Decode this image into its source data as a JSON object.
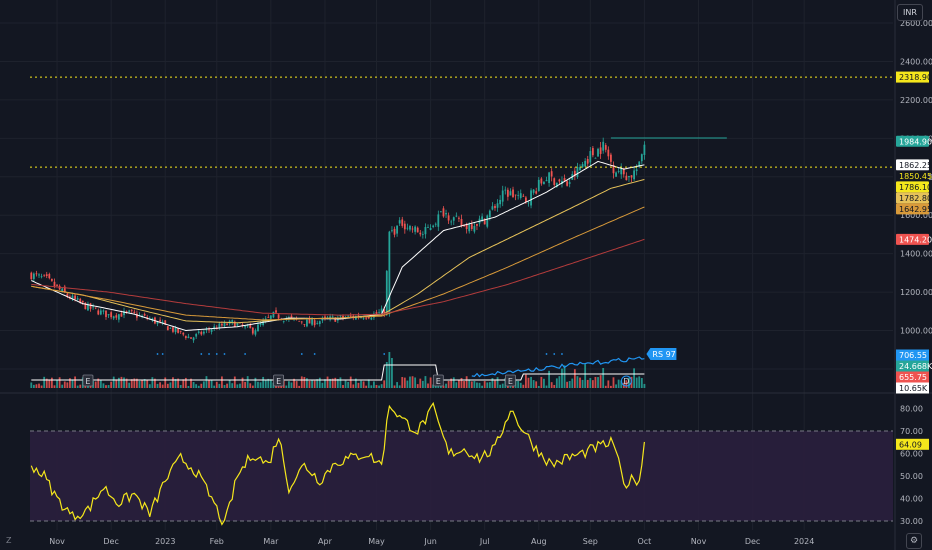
{
  "currency": "INR",
  "corner_label": "Z",
  "gear_icon": "gear-icon",
  "colors": {
    "bg": "#131722",
    "grid": "#1e222d",
    "up": "#26a69a",
    "down": "#ef5350",
    "ma_fast": "#ffffff",
    "ma_mid": "#e6c25a",
    "ma_slow": "#b43c3c",
    "ma_orange": "#d89a3a",
    "rsi_line": "#f5e71c",
    "rsi_band": "#2a1f3d",
    "rs_line": "#2196f3",
    "dotted_level": "#f5e71c"
  },
  "chart_data": [
    {
      "type": "candlestick",
      "currency": "INR",
      "x_ticks": [
        "Nov",
        "Dec",
        "2023",
        "Feb",
        "Mar",
        "Apr",
        "May",
        "Jun",
        "Jul",
        "Aug",
        "Sep",
        "Oct",
        "Nov",
        "Dec",
        "2024"
      ],
      "y_ticks": [
        800,
        1000,
        1200,
        1400,
        1600,
        1800,
        2000,
        2200,
        2400,
        2600
      ],
      "y_tick_labels": [
        "800.00",
        "1000.00",
        "1200.00",
        "1400.00",
        "1600.00",
        "1800.00",
        "2000.00",
        "2200.00",
        "2400.00",
        "2600.00"
      ],
      "ylim": [
        680,
        2720
      ],
      "close_anchors": [
        [
          0,
          1290
        ],
        [
          6,
          1265
        ],
        [
          14,
          1180
        ],
        [
          22,
          1120
        ],
        [
          30,
          1080
        ],
        [
          38,
          1090
        ],
        [
          46,
          1060
        ],
        [
          54,
          1010
        ],
        [
          62,
          960
        ],
        [
          70,
          1010
        ],
        [
          78,
          1040
        ],
        [
          86,
          1000
        ],
        [
          94,
          1080
        ],
        [
          100,
          1060
        ],
        [
          108,
          1040
        ],
        [
          116,
          1060
        ],
        [
          124,
          1070
        ],
        [
          132,
          1080
        ],
        [
          137,
          1100
        ],
        [
          139,
          1500
        ],
        [
          144,
          1560
        ],
        [
          152,
          1500
        ],
        [
          160,
          1620
        ],
        [
          168,
          1540
        ],
        [
          176,
          1580
        ],
        [
          184,
          1720
        ],
        [
          192,
          1680
        ],
        [
          200,
          1800
        ],
        [
          208,
          1760
        ],
        [
          216,
          1900
        ],
        [
          222,
          1960
        ],
        [
          226,
          1850
        ],
        [
          232,
          1800
        ],
        [
          236,
          1850
        ],
        [
          238,
          1984.9
        ]
      ],
      "moving_averages": [
        {
          "name": "MA 20",
          "color": "#ffffff",
          "last": 1862.25,
          "anchors": [
            [
              0,
              1260
            ],
            [
              20,
              1140
            ],
            [
              40,
              1085
            ],
            [
              60,
              1000
            ],
            [
              80,
              1020
            ],
            [
              100,
              1065
            ],
            [
              120,
              1060
            ],
            [
              136,
              1085
            ],
            [
              144,
              1330
            ],
            [
              160,
              1520
            ],
            [
              180,
              1590
            ],
            [
              200,
              1720
            ],
            [
              220,
              1880
            ],
            [
              230,
              1840
            ],
            [
              238,
              1862.25
            ]
          ]
        },
        {
          "name": "MA 50",
          "color": "#e6c25a",
          "last": 1786.1,
          "anchors": [
            [
              0,
              1230
            ],
            [
              20,
              1185
            ],
            [
              40,
              1115
            ],
            [
              60,
              1050
            ],
            [
              80,
              1040
            ],
            [
              100,
              1060
            ],
            [
              120,
              1065
            ],
            [
              136,
              1080
            ],
            [
              150,
              1190
            ],
            [
              170,
              1380
            ],
            [
              190,
              1510
            ],
            [
              210,
              1640
            ],
            [
              225,
              1740
            ],
            [
              238,
              1786.1
            ]
          ]
        },
        {
          "name": "MA 100",
          "color": "#d89a3a",
          "last": 1642.95,
          "anchors": [
            [
              0,
              1230
            ],
            [
              30,
              1160
            ],
            [
              60,
              1080
            ],
            [
              90,
              1055
            ],
            [
              120,
              1065
            ],
            [
              136,
              1075
            ],
            [
              160,
              1190
            ],
            [
              185,
              1330
            ],
            [
              210,
              1480
            ],
            [
              238,
              1642.95
            ]
          ]
        },
        {
          "name": "MA 200",
          "color": "#b43c3c",
          "last": 1474.2,
          "anchors": [
            [
              0,
              1240
            ],
            [
              30,
              1200
            ],
            [
              60,
              1140
            ],
            [
              90,
              1090
            ],
            [
              120,
              1080
            ],
            [
              136,
              1085
            ],
            [
              160,
              1150
            ],
            [
              185,
              1240
            ],
            [
              210,
              1350
            ],
            [
              238,
              1474.2
            ]
          ]
        }
      ],
      "levels": [
        {
          "value": 2318.9,
          "label": "2318.90",
          "style": "dotted",
          "color": "#f5e71c"
        },
        {
          "value": 1850.45,
          "label": "1850.45",
          "style": "dotted",
          "color": "#f5e71c"
        },
        {
          "value": 2002,
          "style": "solid",
          "color": "#26a69a",
          "from_bar": 225,
          "to_bar": 270
        }
      ],
      "price_labels": [
        {
          "value": 1984.9,
          "label": "1984.90",
          "bg": "#26a69a",
          "fg": "#ffffff"
        },
        {
          "value": 1862.25,
          "label": "1862.25",
          "bg": "#ffffff",
          "fg": "#131722"
        },
        {
          "value": 1850.45,
          "label": "1850.45",
          "bg": "#131722",
          "fg": "#f5e71c"
        },
        {
          "value": 1786.1,
          "label": "1786.10",
          "bg": "#f5e71c",
          "fg": "#131722"
        },
        {
          "value": 1782.8,
          "label": "1782.80",
          "bg": "#e6c25a",
          "fg": "#131722"
        },
        {
          "value": 1642.95,
          "label": "1642.95",
          "bg": "#d89a3a",
          "fg": "#131722"
        },
        {
          "value": 1474.2,
          "label": "1474.20",
          "bg": "#ef5350",
          "fg": "#ffffff"
        }
      ],
      "volume_labels": [
        {
          "label": "706.55",
          "bg": "#2196f3",
          "fg": "#ffffff"
        },
        {
          "label": "24.668K",
          "bg": "#26a69a",
          "fg": "#ffffff"
        },
        {
          "label": "655.75",
          "bg": "#ef5350",
          "fg": "#ffffff"
        },
        {
          "label": "10.65K",
          "bg": "#ffffff",
          "fg": "#131722"
        }
      ],
      "rs_badge": "RS 97",
      "event_markers": [
        {
          "bar": 22,
          "label": "E"
        },
        {
          "bar": 96,
          "label": "E"
        },
        {
          "bar": 186,
          "label": "E"
        },
        {
          "bar": 158,
          "label": "E"
        },
        {
          "bar": 231,
          "label": "D"
        }
      ]
    },
    {
      "type": "line",
      "name": "RSI",
      "y_ticks": [
        30,
        40,
        50,
        60,
        70,
        80
      ],
      "y_tick_labels": [
        "30.00",
        "40.00",
        "50.00",
        "60.00",
        "70.00",
        "80.00"
      ],
      "ylim": [
        26,
        86
      ],
      "band": [
        30,
        70
      ],
      "last": 64.09,
      "last_label": "64.09",
      "anchors": [
        [
          0,
          55
        ],
        [
          5,
          50
        ],
        [
          10,
          40
        ],
        [
          16,
          32
        ],
        [
          22,
          35
        ],
        [
          28,
          45
        ],
        [
          34,
          38
        ],
        [
          40,
          42
        ],
        [
          46,
          33
        ],
        [
          52,
          48
        ],
        [
          58,
          58
        ],
        [
          64,
          52
        ],
        [
          70,
          40
        ],
        [
          75,
          28
        ],
        [
          80,
          50
        ],
        [
          86,
          60
        ],
        [
          92,
          55
        ],
        [
          96,
          68
        ],
        [
          100,
          45
        ],
        [
          106,
          55
        ],
        [
          112,
          48
        ],
        [
          118,
          56
        ],
        [
          124,
          58
        ],
        [
          130,
          60
        ],
        [
          136,
          55
        ],
        [
          139,
          82
        ],
        [
          144,
          75
        ],
        [
          150,
          70
        ],
        [
          156,
          80
        ],
        [
          162,
          60
        ],
        [
          168,
          62
        ],
        [
          174,
          58
        ],
        [
          180,
          62
        ],
        [
          186,
          80
        ],
        [
          190,
          72
        ],
        [
          196,
          62
        ],
        [
          202,
          55
        ],
        [
          208,
          58
        ],
        [
          214,
          60
        ],
        [
          220,
          63
        ],
        [
          226,
          65
        ],
        [
          230,
          46
        ],
        [
          234,
          49
        ],
        [
          236,
          48
        ],
        [
          238,
          64.09
        ]
      ]
    }
  ]
}
